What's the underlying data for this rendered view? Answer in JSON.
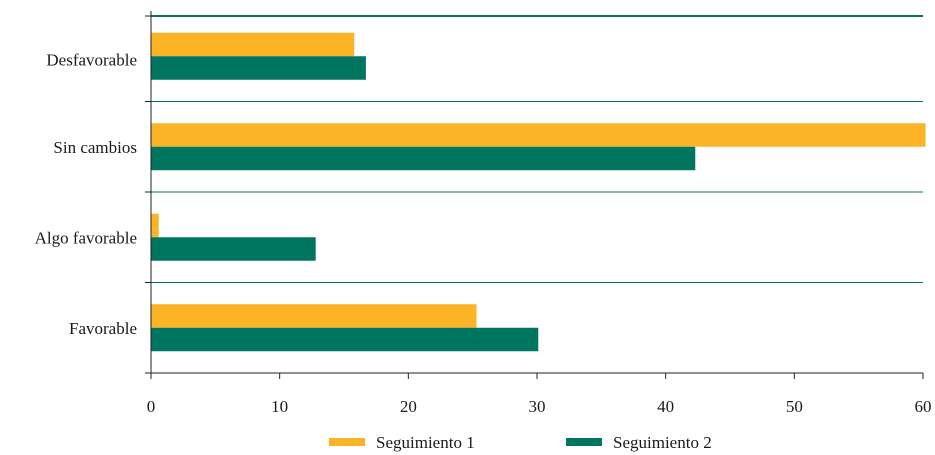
{
  "chart_data": {
    "type": "bar",
    "orientation": "horizontal",
    "categories": [
      "Desfavorable",
      "Sin cambios",
      "Algo favorable",
      "Favorable"
    ],
    "series": [
      {
        "name": "Seguimiento 1",
        "color": "#FBB426",
        "values": [
          15.8,
          60.2,
          0.6,
          25.3
        ]
      },
      {
        "name": "Seguimiento 2",
        "color": "#00755F",
        "values": [
          16.7,
          42.3,
          12.8,
          30.1
        ]
      }
    ],
    "xlim": [
      0,
      60
    ],
    "xticks": [
      "0",
      "10",
      "20",
      "30",
      "40",
      "50",
      "60"
    ],
    "grid": "horizontal separators between categories",
    "legend_position": "bottom",
    "gridline_color": "#00755F"
  }
}
